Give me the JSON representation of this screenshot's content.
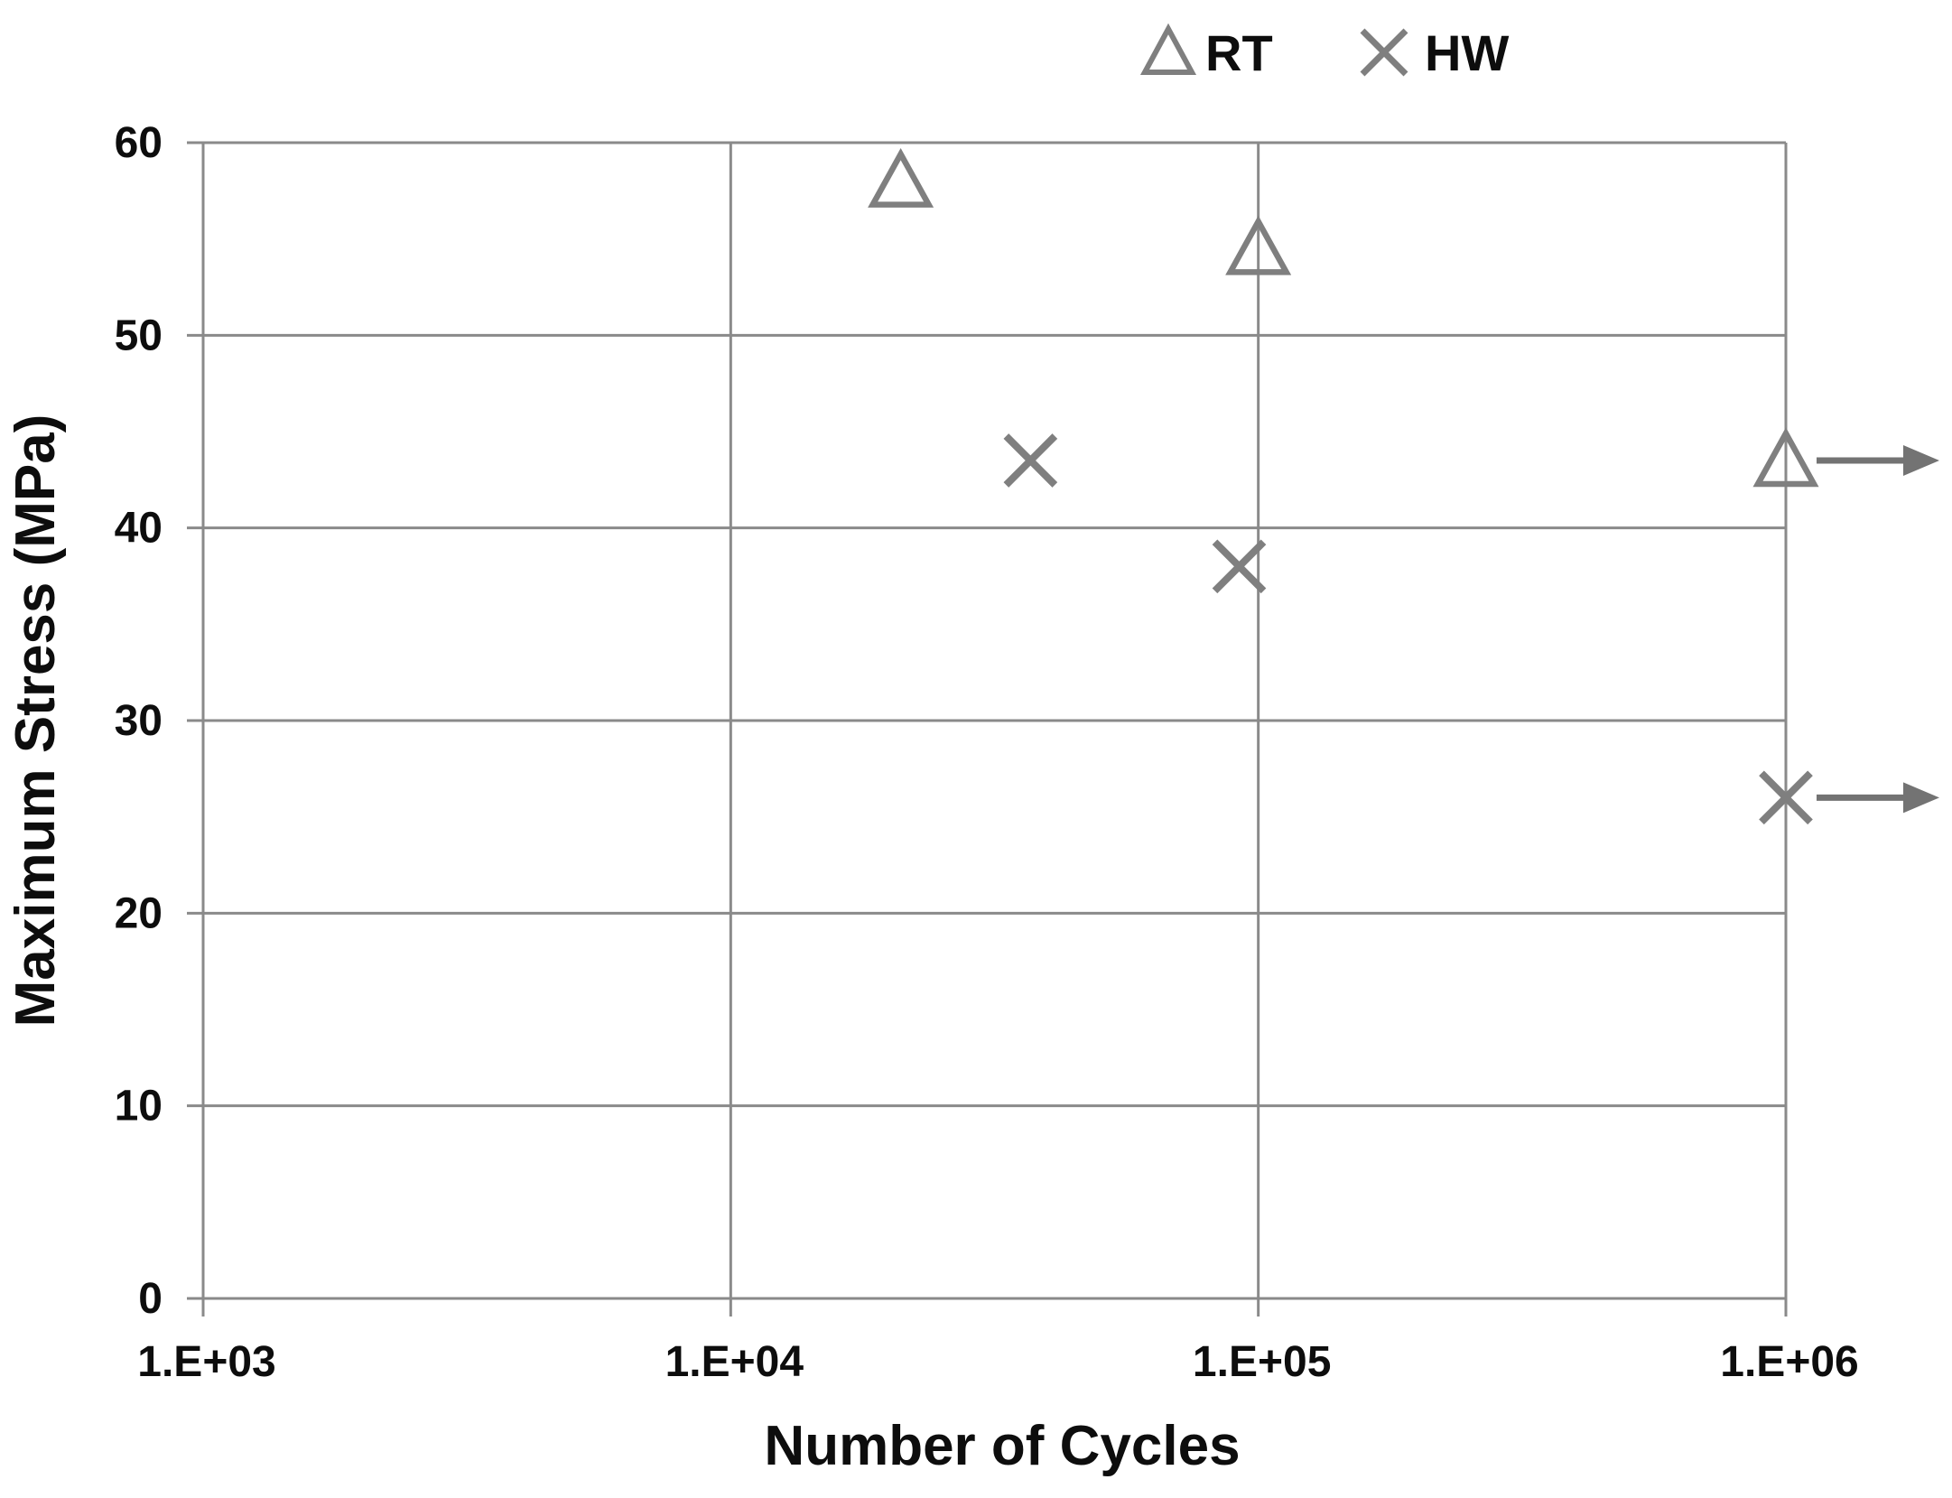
{
  "chart_data": {
    "type": "scatter",
    "title": "",
    "xlabel": "Number of Cycles",
    "ylabel": "Maximum Stress (MPa)",
    "x_scale": "log",
    "xlim": [
      1000,
      1000000
    ],
    "ylim": [
      0,
      60
    ],
    "grid": true,
    "legend_position": "top",
    "x_ticks": [
      {
        "value": 1000,
        "label": "1.E+03"
      },
      {
        "value": 10000,
        "label": "1.E+04"
      },
      {
        "value": 100000,
        "label": "1.E+05"
      },
      {
        "value": 1000000,
        "label": "1.E+06"
      }
    ],
    "y_ticks": [
      {
        "value": 0,
        "label": "0"
      },
      {
        "value": 10,
        "label": "10"
      },
      {
        "value": 20,
        "label": "20"
      },
      {
        "value": 30,
        "label": "30"
      },
      {
        "value": 40,
        "label": "40"
      },
      {
        "value": 50,
        "label": "50"
      },
      {
        "value": 60,
        "label": "60"
      }
    ],
    "series": [
      {
        "name": "RT",
        "marker": "triangle",
        "color": "#7f7f7f",
        "points": [
          {
            "x": 21000,
            "y": 58
          },
          {
            "x": 100000,
            "y": 54.5
          },
          {
            "x": 1000000,
            "y": 43.5,
            "runout": true
          }
        ]
      },
      {
        "name": "HW",
        "marker": "x",
        "color": "#7f7f7f",
        "points": [
          {
            "x": 37000,
            "y": 43.5
          },
          {
            "x": 92000,
            "y": 38
          },
          {
            "x": 1000000,
            "y": 26,
            "runout": true
          }
        ]
      }
    ],
    "annotations": {
      "runout_arrow": "right-arrow"
    }
  },
  "colors": {
    "marker_gray": "#7f7f7f",
    "arrow_gray": "#737373",
    "grid_gray": "#8a8a8a",
    "text_black": "#0d0d0d",
    "background": "#ffffff"
  }
}
